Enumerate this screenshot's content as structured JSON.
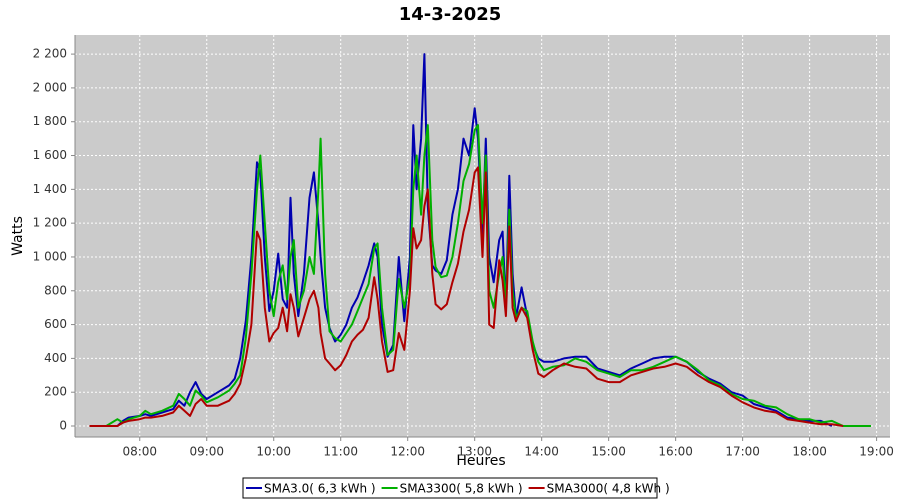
{
  "chart_data": {
    "type": "line",
    "title": "14-3-2025",
    "x_label": "Heures",
    "y_label": "Watts",
    "xlim": [
      "07:02",
      "19:12"
    ],
    "xticks": [
      "08:00",
      "09:00",
      "10:00",
      "11:00",
      "12:00",
      "13:00",
      "14:00",
      "15:00",
      "16:00",
      "17:00",
      "18:00",
      "19:00"
    ],
    "ylim": [
      -65,
      2313
    ],
    "yticks": [
      0,
      200,
      400,
      600,
      800,
      {
        "value": 1000,
        "label": "1 000"
      },
      {
        "value": 1200,
        "label": "1 200"
      },
      {
        "value": 1400,
        "label": "1 400"
      },
      {
        "value": 1600,
        "label": "1 600"
      },
      {
        "value": 1800,
        "label": "1 800"
      },
      {
        "value": 2000,
        "label": "2 000"
      },
      {
        "value": 2200,
        "label": "2 200"
      }
    ],
    "grid": true,
    "x": [
      "07:15",
      "07:30",
      "07:40",
      "07:45",
      "07:50",
      "08:00",
      "08:05",
      "08:10",
      "08:20",
      "08:30",
      "08:35",
      "08:40",
      "08:45",
      "08:50",
      "08:55",
      "09:00",
      "09:10",
      "09:20",
      "09:25",
      "09:30",
      "09:35",
      "09:40",
      "09:45",
      "09:48",
      "09:52",
      "09:56",
      "10:00",
      "10:04",
      "10:08",
      "10:12",
      "10:15",
      "10:18",
      "10:22",
      "10:27",
      "10:32",
      "10:36",
      "10:40",
      "10:42",
      "10:46",
      "10:50",
      "10:55",
      "11:00",
      "11:05",
      "11:10",
      "11:15",
      "11:20",
      "11:25",
      "11:30",
      "11:33",
      "11:37",
      "11:42",
      "11:47",
      "11:52",
      "11:57",
      "12:02",
      "12:05",
      "12:08",
      "12:12",
      "12:15",
      "12:18",
      "12:22",
      "12:25",
      "12:30",
      "12:35",
      "12:40",
      "12:45",
      "12:50",
      "12:55",
      "13:00",
      "13:03",
      "13:07",
      "13:10",
      "13:13",
      "13:17",
      "13:22",
      "13:25",
      "13:28",
      "13:31",
      "13:34",
      "13:37",
      "13:42",
      "13:47",
      "13:52",
      "13:57",
      "14:02",
      "14:10",
      "14:20",
      "14:30",
      "14:40",
      "14:50",
      "15:00",
      "15:10",
      "15:20",
      "15:30",
      "15:40",
      "15:50",
      "16:00",
      "16:10",
      "16:20",
      "16:30",
      "16:40",
      "16:50",
      "17:00",
      "17:10",
      "17:20",
      "17:30",
      "17:40",
      "17:50",
      "18:00",
      "18:10",
      "18:20",
      "18:30",
      "18:55"
    ],
    "series": [
      {
        "name": "SMA3.0( 6,3 kWh )",
        "color": "#0000b0",
        "values": [
          null,
          null,
          0,
          30,
          50,
          60,
          70,
          60,
          80,
          100,
          150,
          120,
          200,
          260,
          190,
          160,
          200,
          240,
          280,
          400,
          620,
          1000,
          1560,
          1500,
          1000,
          680,
          800,
          1020,
          750,
          700,
          1350,
          900,
          650,
          900,
          1350,
          1500,
          1200,
          1000,
          700,
          580,
          500,
          540,
          600,
          700,
          760,
          850,
          950,
          1080,
          1000,
          600,
          410,
          480,
          1000,
          620,
          1000,
          1780,
          1400,
          1700,
          2200,
          1300,
          950,
          920,
          900,
          980,
          1250,
          1400,
          1700,
          1600,
          1880,
          1700,
          1120,
          1700,
          1000,
          850,
          1100,
          1150,
          700,
          1480,
          900,
          640,
          820,
          650,
          480,
          400,
          380,
          380,
          400,
          410,
          410,
          340,
          320,
          300,
          340,
          370,
          400,
          410,
          410,
          380,
          320,
          280,
          250,
          200,
          180,
          130,
          110,
          90,
          50,
          40,
          30,
          30,
          0,
          null,
          null
        ]
      },
      {
        "name": "SMA3300( 5,8 kWh )",
        "color": "#00b000",
        "values": [
          0,
          0,
          40,
          20,
          40,
          60,
          90,
          70,
          90,
          120,
          190,
          160,
          120,
          210,
          180,
          140,
          170,
          210,
          250,
          300,
          520,
          900,
          1400,
          1600,
          1200,
          800,
          650,
          850,
          950,
          750,
          1000,
          1100,
          700,
          800,
          1000,
          900,
          1400,
          1700,
          900,
          560,
          520,
          500,
          550,
          600,
          680,
          760,
          840,
          1050,
          1080,
          700,
          420,
          450,
          870,
          700,
          880,
          1400,
          1600,
          1250,
          1600,
          1780,
          1100,
          940,
          880,
          890,
          1000,
          1200,
          1450,
          1550,
          1750,
          1780,
          1200,
          1600,
          800,
          700,
          900,
          1000,
          720,
          1280,
          800,
          640,
          700,
          680,
          500,
          380,
          330,
          350,
          360,
          400,
          380,
          330,
          310,
          290,
          330,
          330,
          350,
          380,
          410,
          380,
          330,
          270,
          240,
          190,
          160,
          150,
          120,
          110,
          70,
          40,
          40,
          20,
          30,
          0,
          0
        ]
      },
      {
        "name": "SMA3000( 4,8 kWh )",
        "color": "#b00000",
        "values": [
          0,
          0,
          0,
          20,
          30,
          40,
          50,
          50,
          60,
          80,
          120,
          90,
          60,
          130,
          160,
          120,
          120,
          150,
          190,
          250,
          400,
          600,
          1150,
          1100,
          700,
          500,
          550,
          580,
          700,
          560,
          780,
          700,
          530,
          640,
          750,
          800,
          700,
          550,
          400,
          370,
          330,
          360,
          420,
          500,
          540,
          570,
          640,
          880,
          750,
          500,
          320,
          330,
          550,
          450,
          800,
          1170,
          1050,
          1100,
          1300,
          1400,
          900,
          720,
          690,
          720,
          850,
          960,
          1150,
          1280,
          1500,
          1530,
          1000,
          1500,
          600,
          580,
          980,
          860,
          650,
          1180,
          700,
          620,
          700,
          640,
          450,
          310,
          290,
          330,
          370,
          350,
          340,
          280,
          260,
          260,
          300,
          320,
          340,
          350,
          370,
          350,
          300,
          260,
          230,
          180,
          140,
          110,
          90,
          80,
          40,
          30,
          20,
          10,
          10,
          0,
          null
        ]
      }
    ]
  }
}
